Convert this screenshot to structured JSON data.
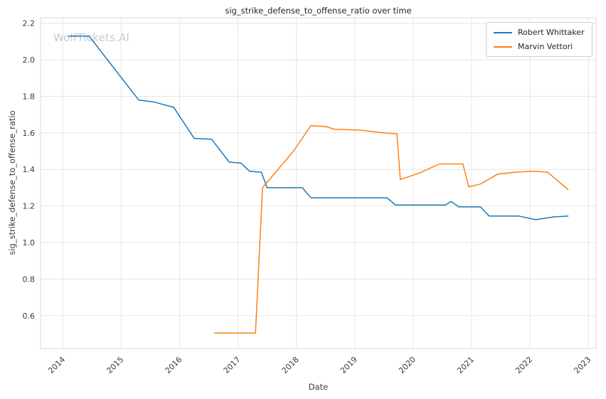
{
  "watermark": {
    "text": "WolfTickets.AI"
  },
  "chart_data": {
    "type": "line",
    "title": "sig_strike_defense_to_offense_ratio over time",
    "xlabel": "Date",
    "ylabel": "sig_strike_defense_to_offense_ratio",
    "xlim": [
      2013.62,
      2023.13
    ],
    "ylim": [
      0.42,
      2.23
    ],
    "xticks": [
      2014,
      2015,
      2016,
      2017,
      2018,
      2019,
      2020,
      2021,
      2022,
      2023
    ],
    "yticks": [
      0.6,
      0.8,
      1.0,
      1.2,
      1.4,
      1.6,
      1.8,
      2.0,
      2.2
    ],
    "grid": true,
    "legend_position": "upper right",
    "grid_color": "#e5e5e5",
    "spine_color": "#d9d9d9",
    "tick_color": "#3b3b3b",
    "series": [
      {
        "name": "Robert Whittaker",
        "color": "#1f77b4",
        "points": [
          [
            2014.1,
            2.13
          ],
          [
            2014.45,
            2.13
          ],
          [
            2015.3,
            1.78
          ],
          [
            2015.55,
            1.77
          ],
          [
            2015.9,
            1.74
          ],
          [
            2016.25,
            1.57
          ],
          [
            2016.55,
            1.565
          ],
          [
            2016.85,
            1.44
          ],
          [
            2017.05,
            1.435
          ],
          [
            2017.2,
            1.39
          ],
          [
            2017.4,
            1.385
          ],
          [
            2017.5,
            1.3
          ],
          [
            2018.1,
            1.3
          ],
          [
            2018.25,
            1.245
          ],
          [
            2019.1,
            1.245
          ],
          [
            2019.55,
            1.245
          ],
          [
            2019.7,
            1.205
          ],
          [
            2020.4,
            1.205
          ],
          [
            2020.55,
            1.205
          ],
          [
            2020.65,
            1.225
          ],
          [
            2020.78,
            1.195
          ],
          [
            2021.15,
            1.195
          ],
          [
            2021.3,
            1.145
          ],
          [
            2021.8,
            1.145
          ],
          [
            2022.1,
            1.125
          ],
          [
            2022.4,
            1.14
          ],
          [
            2022.65,
            1.145
          ]
        ]
      },
      {
        "name": "Marvin Vettori",
        "color": "#ff7f0e",
        "points": [
          [
            2016.6,
            0.505
          ],
          [
            2016.95,
            0.505
          ],
          [
            2017.3,
            0.505
          ],
          [
            2017.42,
            1.3
          ],
          [
            2017.95,
            1.5
          ],
          [
            2018.25,
            1.64
          ],
          [
            2018.5,
            1.635
          ],
          [
            2018.65,
            1.62
          ],
          [
            2019.1,
            1.615
          ],
          [
            2019.5,
            1.6
          ],
          [
            2019.72,
            1.595
          ],
          [
            2019.78,
            1.345
          ],
          [
            2020.1,
            1.38
          ],
          [
            2020.45,
            1.43
          ],
          [
            2020.85,
            1.43
          ],
          [
            2020.95,
            1.305
          ],
          [
            2021.15,
            1.32
          ],
          [
            2021.45,
            1.375
          ],
          [
            2021.75,
            1.385
          ],
          [
            2022.05,
            1.39
          ],
          [
            2022.3,
            1.385
          ],
          [
            2022.65,
            1.29
          ]
        ]
      }
    ]
  }
}
